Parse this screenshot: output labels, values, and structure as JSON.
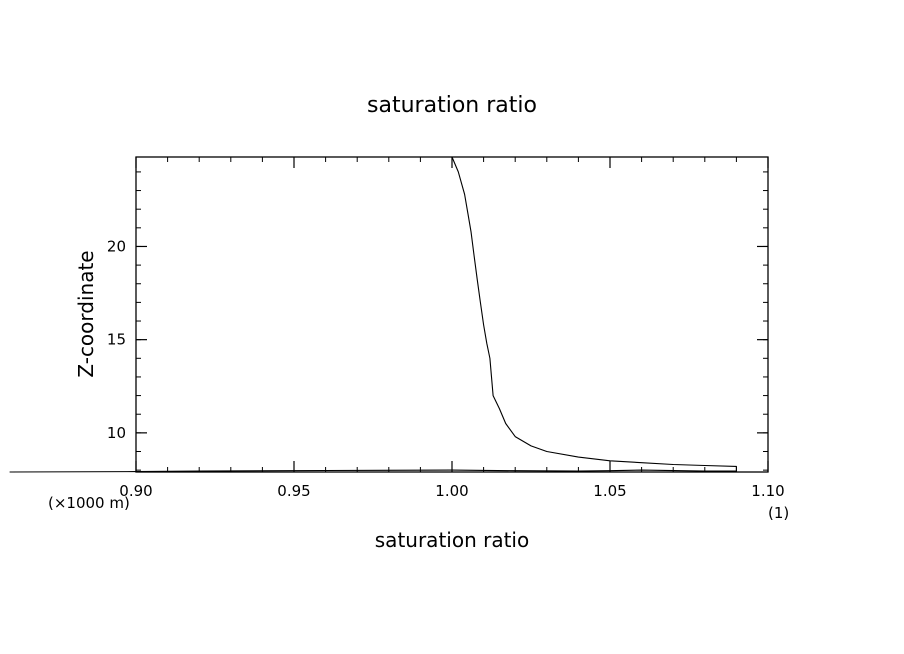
{
  "chart_data": {
    "type": "line",
    "title": "saturation ratio",
    "xlabel": "saturation ratio",
    "ylabel": "Z-coordinate",
    "x_unit": "(1)",
    "y_unit": "(×1000 m)",
    "xlim": [
      0.9,
      1.1
    ],
    "ylim": [
      7.9,
      24.8
    ],
    "x_ticks": [
      {
        "value": 0.9,
        "label": "0.90"
      },
      {
        "value": 0.95,
        "label": "0.95"
      },
      {
        "value": 1.0,
        "label": "1.00"
      },
      {
        "value": 1.05,
        "label": "1.05"
      },
      {
        "value": 1.1,
        "label": "1.10"
      }
    ],
    "y_ticks": [
      {
        "value": 10,
        "label": "10"
      },
      {
        "value": 15,
        "label": "15"
      },
      {
        "value": 20,
        "label": "20"
      }
    ],
    "x_minor_step": 0.01,
    "y_minor_step": 1,
    "grid": false,
    "series": [
      {
        "color": "#000000",
        "x": [
          1.0,
          1.002,
          1.004,
          1.005,
          1.006,
          1.007,
          1.008,
          1.009,
          1.01,
          1.011,
          1.012,
          1.0125,
          1.013,
          1.015,
          1.017,
          1.02,
          1.025,
          1.03,
          1.04,
          1.05,
          1.06,
          1.07,
          1.08,
          1.09,
          1.09,
          1.08,
          1.06,
          1.05,
          1.04,
          1.02,
          1.0,
          0.96,
          0.92,
          0.9,
          0.86
        ],
        "y": [
          24.8,
          24.0,
          22.8,
          21.8,
          20.8,
          19.5,
          18.2,
          17.0,
          15.8,
          14.8,
          14.0,
          13.0,
          12.0,
          11.3,
          10.5,
          9.8,
          9.3,
          9.0,
          8.7,
          8.5,
          8.4,
          8.3,
          8.25,
          8.2,
          7.95,
          7.95,
          8.0,
          7.97,
          7.95,
          7.97,
          8.0,
          7.98,
          7.95,
          7.92,
          7.9
        ]
      }
    ]
  }
}
